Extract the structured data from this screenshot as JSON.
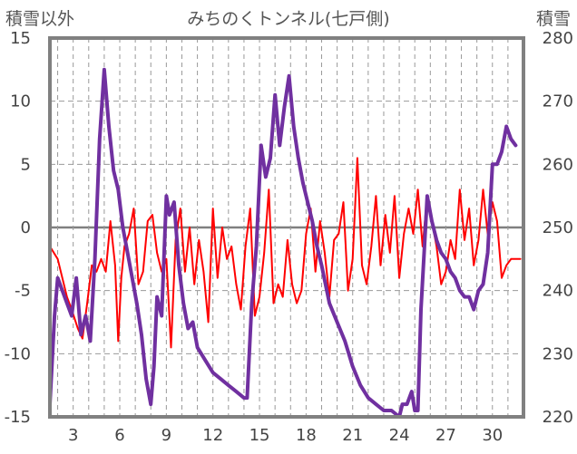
{
  "chart_data": {
    "type": "line",
    "title": "みちのくトンネル(七戸側)",
    "left_axis": {
      "label": "積雪以外",
      "ylim": [
        -15,
        15
      ],
      "ticks": [
        "15",
        "10",
        "5",
        "0",
        "-5",
        "-10",
        "-15"
      ]
    },
    "right_axis": {
      "label": "積雪",
      "ylim": [
        220,
        280
      ],
      "ticks": [
        "280",
        "270",
        "260",
        "250",
        "240",
        "230",
        "220"
      ]
    },
    "x_axis": {
      "xlim": [
        1.5,
        32.0
      ],
      "tick_labels": [
        "3",
        "6",
        "9",
        "12",
        "15",
        "18",
        "21",
        "24",
        "27",
        "30"
      ],
      "tick_values": [
        3,
        6,
        9,
        12,
        15,
        18,
        21,
        24,
        27,
        30
      ]
    },
    "grid": true,
    "colors": {
      "temperature": "#ff0000",
      "snow_depth": "#7030a0",
      "frame": "#808080",
      "zero_line": "#808080",
      "grid": "#999999"
    },
    "series": [
      {
        "axis": "left",
        "color": "#ff0000",
        "x": [
          1.5,
          2.0,
          2.3,
          2.6,
          2.9,
          3.3,
          3.6,
          3.9,
          4.2,
          4.5,
          4.8,
          5.1,
          5.4,
          5.7,
          5.9,
          6.1,
          6.3,
          6.6,
          6.9,
          7.2,
          7.5,
          7.8,
          8.1,
          8.4,
          8.7,
          9.0,
          9.3,
          9.6,
          9.9,
          10.2,
          10.5,
          10.8,
          11.1,
          11.4,
          11.7,
          12.0,
          12.3,
          12.6,
          12.9,
          13.2,
          13.5,
          13.8,
          14.1,
          14.4,
          14.7,
          15.0,
          15.3,
          15.6,
          15.9,
          16.2,
          16.5,
          16.8,
          17.1,
          17.4,
          17.7,
          18.0,
          18.3,
          18.6,
          18.9,
          19.2,
          19.5,
          19.8,
          20.1,
          20.4,
          20.7,
          21.0,
          21.3,
          21.6,
          21.9,
          22.2,
          22.5,
          22.8,
          23.1,
          23.4,
          23.7,
          24.0,
          24.3,
          24.6,
          24.9,
          25.2,
          25.5,
          25.8,
          26.1,
          26.4,
          26.7,
          27.0,
          27.3,
          27.6,
          27.9,
          28.2,
          28.5,
          28.8,
          29.1,
          29.4,
          29.7,
          30.0,
          30.3,
          30.6,
          30.9,
          31.2,
          31.5,
          31.8
        ],
        "y": [
          -1.5,
          -2.5,
          -4.0,
          -5.5,
          -6.5,
          -8.0,
          -8.8,
          -6.0,
          -3.0,
          -3.5,
          -2.5,
          -3.5,
          0.5,
          -3.0,
          -9.0,
          -4.0,
          -1.5,
          -0.5,
          1.5,
          -4.5,
          -3.5,
          0.5,
          1.0,
          -2.0,
          -3.5,
          -2.5,
          -9.5,
          -1.0,
          1.5,
          -3.5,
          0.0,
          -4.5,
          -1.0,
          -3.5,
          -7.5,
          1.5,
          -4.0,
          0.0,
          -2.5,
          -1.5,
          -4.5,
          -6.5,
          -1.5,
          1.5,
          -7.0,
          -5.5,
          -2.0,
          3.0,
          -6.0,
          -4.5,
          -5.5,
          -1.0,
          -4.5,
          -6.0,
          -5.0,
          -0.5,
          1.5,
          -3.5,
          0.5,
          -2.0,
          -5.5,
          -1.0,
          -0.5,
          2.0,
          -5.0,
          -2.5,
          5.5,
          -3.0,
          -4.5,
          -1.5,
          2.5,
          -3.0,
          1.0,
          -2.0,
          2.5,
          -4.0,
          -0.5,
          1.5,
          -0.5,
          3.0,
          -1.5,
          2.5,
          0.5,
          -1.5,
          -4.5,
          -3.5,
          -1.0,
          -2.5,
          3.0,
          -1.0,
          1.5,
          -3.0,
          -1.0,
          3.0,
          -0.5,
          2.0,
          0.5,
          -4.0,
          -3.0,
          -2.5,
          -2.5,
          -2.5
        ]
      },
      {
        "axis": "right",
        "color": "#7030a0",
        "x": [
          1.5,
          1.8,
          2.0,
          2.3,
          2.6,
          2.9,
          3.2,
          3.5,
          3.8,
          4.1,
          4.4,
          4.7,
          5.0,
          5.3,
          5.6,
          5.9,
          6.2,
          6.5,
          6.8,
          7.1,
          7.4,
          7.7,
          8.0,
          8.2,
          8.4,
          8.7,
          9.0,
          9.2,
          9.5,
          9.8,
          10.1,
          10.4,
          10.7,
          11.0,
          11.5,
          12.0,
          12.5,
          13.0,
          13.5,
          14.0,
          14.2,
          14.5,
          14.8,
          15.1,
          15.4,
          15.7,
          16.0,
          16.3,
          16.6,
          16.9,
          17.2,
          17.5,
          17.8,
          18.1,
          18.4,
          18.7,
          19.0,
          19.5,
          20.0,
          20.5,
          21.0,
          21.5,
          22.0,
          22.5,
          23.0,
          23.5,
          24.0,
          24.2,
          24.5,
          24.8,
          25.0,
          25.2,
          25.4,
          25.6,
          25.8,
          26.1,
          26.4,
          26.7,
          27.0,
          27.3,
          27.6,
          27.9,
          28.2,
          28.5,
          28.8,
          29.1,
          29.4,
          29.7,
          30.0,
          30.3,
          30.6,
          30.9,
          31.2,
          31.5
        ],
        "y": [
          222,
          236,
          242,
          240,
          238,
          236,
          242,
          233,
          236,
          232,
          245,
          264,
          275,
          266,
          259,
          256,
          250,
          246,
          242,
          238,
          233,
          226,
          222,
          228,
          239,
          236,
          255,
          252,
          254,
          244,
          238,
          234,
          235,
          231,
          229,
          227,
          226,
          225,
          224,
          223,
          223,
          238,
          247,
          263,
          258,
          261,
          271,
          263,
          269,
          274,
          266,
          261,
          257,
          254,
          251,
          247,
          244,
          238,
          235,
          232,
          228,
          225,
          223,
          222,
          221,
          221,
          220,
          222,
          222,
          224,
          221,
          221,
          237,
          246,
          255,
          251,
          248,
          246,
          245,
          243,
          242,
          240,
          239,
          239,
          237,
          240,
          241,
          246,
          260,
          260,
          262,
          266,
          264,
          263
        ]
      }
    ]
  }
}
